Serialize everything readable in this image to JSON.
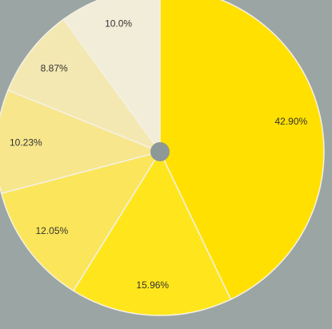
{
  "chart_data": {
    "type": "pie",
    "categories": [
      null,
      null,
      null,
      null,
      null,
      null
    ],
    "values": [
      42.9,
      15.96,
      12.05,
      10.23,
      8.87,
      10.0
    ],
    "value_labels": [
      "42.90%",
      "15.96%",
      "12.05%",
      "10.23%",
      "8.87%",
      "10.0%"
    ],
    "colors": [
      "#ffe000",
      "#ffe61c",
      "#fbe55a",
      "#f7e68c",
      "#f4e8b2",
      "#f2edd8"
    ]
  }
}
